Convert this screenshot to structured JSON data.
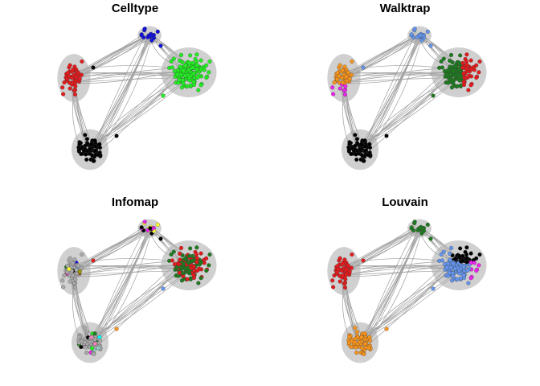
{
  "figure": {
    "panels": [
      {
        "title": "Celltype"
      },
      {
        "title": "Walktrap"
      },
      {
        "title": "Infomap"
      },
      {
        "title": "Louvain"
      }
    ]
  },
  "colors": {
    "edge": "#9e9e9e",
    "node_border": "#3a3a3a",
    "red": "#e41a1c",
    "green_bright": "#22ee22",
    "blue": "#1111dd",
    "black": "#000000",
    "orange": "#f7941d",
    "magenta": "#ee22ee",
    "cornflower": "#6495ed",
    "dark_green": "#1f7a1f",
    "gray_fill": "#aaaaaa"
  }
}
